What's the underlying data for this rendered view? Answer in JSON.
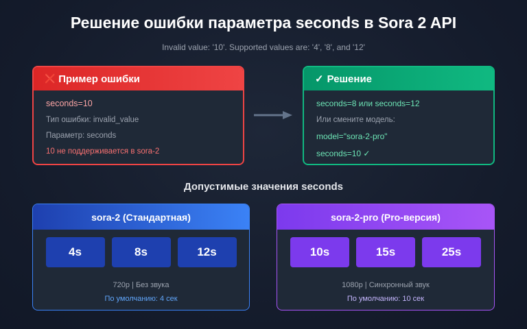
{
  "title": "Решение ошибки параметра seconds в Sora 2 API",
  "subtitle": "Invalid value: '10'. Supported values are: '4', '8', and '12'",
  "error": {
    "icon": "cross-mark-icon",
    "icon_glyph": "❌",
    "title": "Пример ошибки",
    "lines": [
      "seconds=10",
      "Тип ошибки: invalid_value",
      "Параметр: seconds",
      "10 не поддерживается в sora-2"
    ]
  },
  "solution": {
    "icon": "check-mark-icon",
    "icon_glyph": "✓",
    "title": "Решение",
    "lines": [
      "seconds=8 или seconds=12",
      "Или смените модель:",
      "model=\"sora-2-pro\"",
      "seconds=10 ✓"
    ]
  },
  "section_title": "Допустимые значения seconds",
  "models": [
    {
      "name": "sora-2 (Стандартная)",
      "values": [
        "4s",
        "8s",
        "12s"
      ],
      "info": "720p | Без звука",
      "default": "По умолчанию: 4 сек",
      "color": "#3b82f6"
    },
    {
      "name": "sora-2-pro (Pro-версия)",
      "values": [
        "10s",
        "15s",
        "25s"
      ],
      "info": "1080p | Синхронный звук",
      "default": "По умолчанию: 10 сек",
      "color": "#a855f7"
    }
  ],
  "colors": {
    "error": "#ef4444",
    "success": "#10b981"
  }
}
